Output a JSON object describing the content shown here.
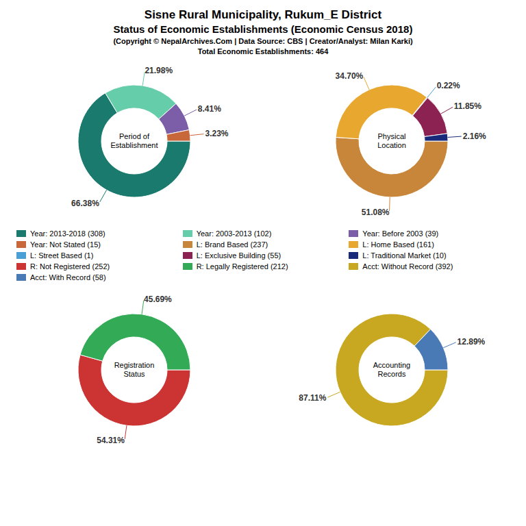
{
  "title": "Sisne Rural Municipality, Rukum_E District",
  "subtitle": "Status of Economic Establishments (Economic Census 2018)",
  "annotations": [
    "(Copyright © NepalArchives.Com | Data Source: CBS | Creator/Analyst: Milan Karki)",
    "Total Economic Establishments: 464"
  ],
  "chart_data": [
    {
      "type": "pie",
      "title": "Period of\nEstablishment",
      "categories": [
        "Year: 2013-2018 (308)",
        "Year: 2003-2013 (102)",
        "Year: Before 2003 (39)",
        "Year: Not Stated (15)"
      ],
      "values": [
        66.38,
        21.98,
        8.41,
        3.23
      ],
      "value_labels": [
        "66.38%",
        "21.98%",
        "8.41%",
        "3.23%"
      ],
      "colors": [
        "#1a7a6e",
        "#66cdaa",
        "#7b5ea7",
        "#c8673a"
      ],
      "data_labels": true
    },
    {
      "type": "pie",
      "title": "Physical\nLocation",
      "categories": [
        "L: Brand Based (237)",
        "L: Home Based (161)",
        "L: Street Based (1)",
        "L: Exclusive Building (55)",
        "L: Traditional Market (10)"
      ],
      "values": [
        51.08,
        34.7,
        0.22,
        11.85,
        2.16
      ],
      "value_labels": [
        "51.08%",
        "34.70%",
        "0.22%",
        "11.85%",
        "2.16%"
      ],
      "colors": [
        "#c8863a",
        "#e8a830",
        "#4a9fd4",
        "#8b2252",
        "#1a2a7a"
      ],
      "data_labels": true
    },
    {
      "type": "pie",
      "title": "Registration\nStatus",
      "categories": [
        "R: Not Registered (252)",
        "R: Legally Registered (212)"
      ],
      "values": [
        54.31,
        45.69
      ],
      "value_labels": [
        "54.31%",
        "45.69%"
      ],
      "colors": [
        "#cc3333",
        "#33aa55"
      ],
      "data_labels": true
    },
    {
      "type": "pie",
      "title": "Accounting\nRecords",
      "categories": [
        "Acct: Without Record (392)",
        "Acct: With Record (58)"
      ],
      "values": [
        87.11,
        12.89
      ],
      "value_labels": [
        "87.11%",
        "12.89%"
      ],
      "colors": [
        "#c8a820",
        "#4a7ab5"
      ],
      "data_labels": true
    }
  ]
}
